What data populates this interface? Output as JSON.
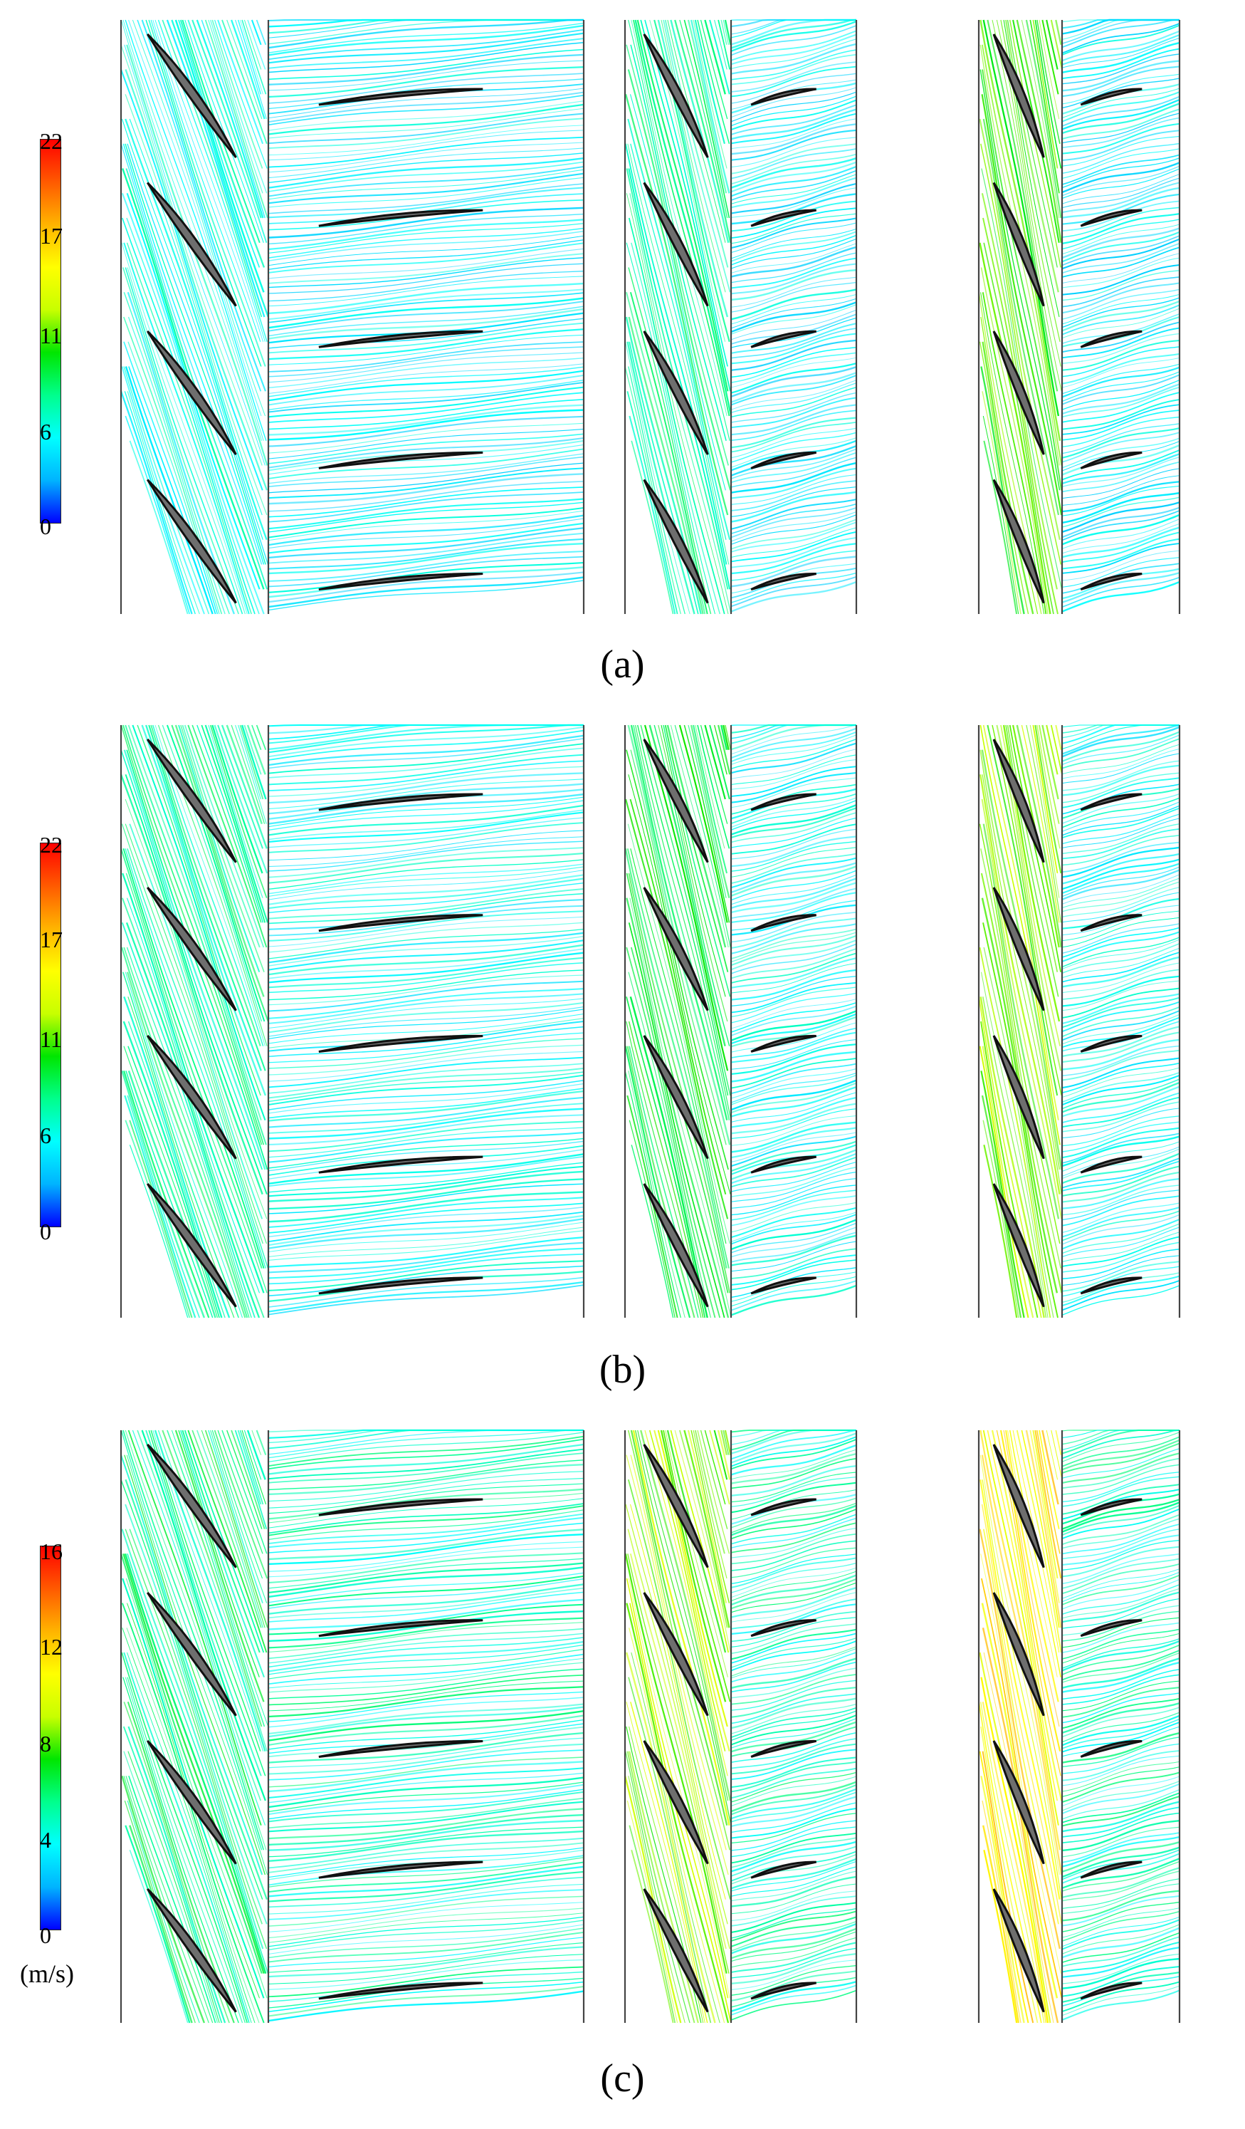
{
  "colors": {
    "blade_fill": "#6e6e6e",
    "blade_stroke": "#111111",
    "divider": "#444444",
    "colormap": [
      "#0000ff",
      "#00b4ff",
      "#00ffff",
      "#00ff8c",
      "#00e600",
      "#c8ff00",
      "#ffff00",
      "#ffb400",
      "#ff5a00",
      "#ff0000"
    ]
  },
  "figure": {
    "rows": [
      {
        "label": "(a)",
        "colorbar": {
          "min": 0,
          "max": 22,
          "ticks": [
            "0",
            "6",
            "11",
            "17",
            "22"
          ],
          "unit": ""
        },
        "case_speeds": [
          5.5,
          7.0,
          10.5
        ],
        "stator_speed": 4.5
      },
      {
        "label": "(b)",
        "colorbar": {
          "min": 0,
          "max": 22,
          "ticks": [
            "0",
            "6",
            "11",
            "17",
            "22"
          ],
          "unit": ""
        },
        "case_speeds": [
          7.0,
          9.0,
          11.5
        ],
        "stator_speed": 5.0
      },
      {
        "label": "(c)",
        "colorbar": {
          "min": 0,
          "max": 16,
          "ticks": [
            "0",
            "4",
            "8",
            "12",
            "16"
          ],
          "unit": "(m/s)"
        },
        "case_speeds": [
          5.5,
          8.5,
          11.0
        ],
        "stator_speed": 4.5
      }
    ]
  }
}
